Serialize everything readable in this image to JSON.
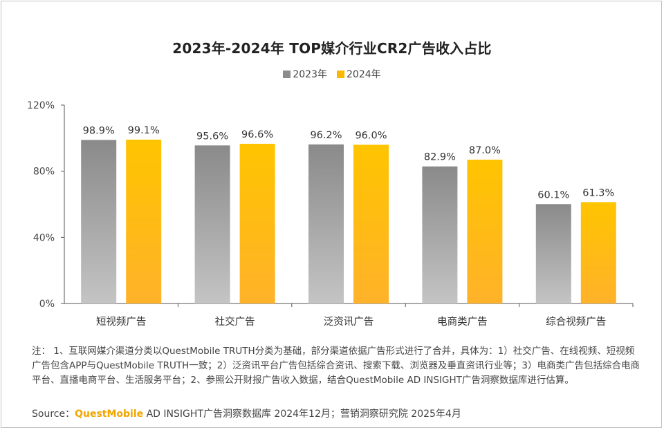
{
  "chart_data": {
    "type": "bar",
    "title": "2023年-2024年 TOP媒介行业CR2广告收入占比",
    "categories": [
      "短视频广告",
      "社交广告",
      "泛资讯广告",
      "电商类广告",
      "综合视频广告"
    ],
    "series": [
      {
        "name": "2023年",
        "values": [
          98.9,
          95.6,
          96.2,
          82.9,
          60.1
        ],
        "labels": [
          "98.9%",
          "95.6%",
          "96.2%",
          "82.9%",
          "60.1%"
        ],
        "color": "#8c8c8c"
      },
      {
        "name": "2024年",
        "values": [
          99.1,
          96.6,
          96.0,
          87.0,
          61.3
        ],
        "labels": [
          "99.1%",
          "96.6%",
          "96.0%",
          "87.0%",
          "61.3%"
        ],
        "color": "#fbb800"
      }
    ],
    "y_ticks": [
      0,
      40,
      80,
      120
    ],
    "y_tick_labels": [
      "0%",
      "40%",
      "80%",
      "120%"
    ],
    "ylim": [
      0,
      120
    ],
    "legend_position": "top-center",
    "grid": false
  },
  "notes": "注： 1、互联网媒介渠道分类以QuestMobile TRUTH分类为基础，部分渠道依据广告形式进行了合并，具体为：1）社交广告、在线视频、短视频广告包含APP与QuestMobile TRUTH一致；2）泛资讯平台广告包括综合资讯、搜索下载、浏览器及垂直资讯行业等；3）电商类广告包括综合电商平台、直播电商平台、生活服务平台；2、参照公开财报广告收入数据，结合QuestMobile AD INSIGHT广告洞察数据库进行估算。",
  "source": {
    "prefix": "Source：",
    "brand": "QuestMobile",
    "rest": " AD INSIGHT广告洞察数据库 2024年12月；营销洞察研究院 2025年4月"
  }
}
